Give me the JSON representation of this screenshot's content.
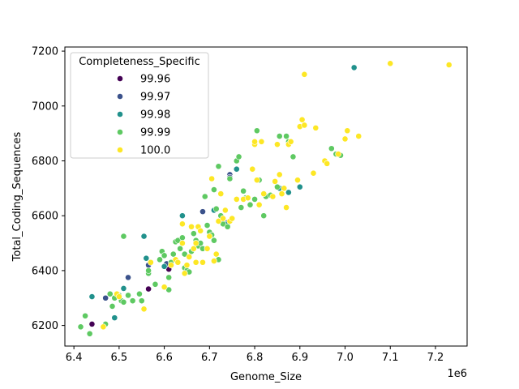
{
  "chart_data": {
    "type": "scatter",
    "title": "",
    "xlabel": "Genome_Size",
    "ylabel": "Total_Coding_Sequences",
    "x_offset_label": "1e6",
    "xlim": [
      6.38,
      7.27
    ],
    "ylim": [
      6125,
      7215
    ],
    "x_ticks": [
      "6.4",
      "6.5",
      "6.6",
      "6.7",
      "6.8",
      "6.9",
      "7.0",
      "7.1",
      "7.2"
    ],
    "y_ticks": [
      "6200",
      "6400",
      "6600",
      "6800",
      "7000",
      "7200"
    ],
    "x_tick_values": [
      6.4,
      6.5,
      6.6,
      6.7,
      6.8,
      6.9,
      7.0,
      7.1,
      7.2
    ],
    "y_tick_values": [
      6200,
      6400,
      6600,
      6800,
      7000,
      7200
    ],
    "grid": false,
    "legend": {
      "title": "Completeness_Specific",
      "placement": "top-left"
    },
    "series": [
      {
        "name": "99.96",
        "color": "#440154",
        "points": [
          [
            6.44,
            6205
          ],
          [
            6.565,
            6333
          ],
          [
            6.61,
            6405
          ]
        ]
      },
      {
        "name": "99.97",
        "color": "#3b528b",
        "points": [
          [
            6.47,
            6300
          ],
          [
            6.52,
            6375
          ],
          [
            6.565,
            6420
          ],
          [
            6.605,
            6425
          ],
          [
            6.685,
            6615
          ],
          [
            6.745,
            6750
          ],
          [
            6.745,
            6740
          ],
          [
            6.74,
            6575
          ]
        ]
      },
      {
        "name": "99.98",
        "color": "#21918c",
        "points": [
          [
            6.44,
            6305
          ],
          [
            6.49,
            6228
          ],
          [
            6.51,
            6335
          ],
          [
            6.555,
            6525
          ],
          [
            6.56,
            6445
          ],
          [
            6.6,
            6415
          ],
          [
            6.64,
            6600
          ],
          [
            6.66,
            6560
          ],
          [
            6.71,
            6620
          ],
          [
            6.74,
            6570
          ],
          [
            6.76,
            6770
          ],
          [
            6.855,
            6700
          ],
          [
            6.875,
            6685
          ],
          [
            6.9,
            6705
          ],
          [
            7.02,
            7140
          ]
        ]
      },
      {
        "name": "99.99",
        "color": "#5ec962",
        "points": [
          [
            6.415,
            6195
          ],
          [
            6.425,
            6235
          ],
          [
            6.435,
            6170
          ],
          [
            6.47,
            6205
          ],
          [
            6.48,
            6315
          ],
          [
            6.485,
            6270
          ],
          [
            6.49,
            6300
          ],
          [
            6.5,
            6310
          ],
          [
            6.505,
            6290
          ],
          [
            6.51,
            6285
          ],
          [
            6.51,
            6525
          ],
          [
            6.52,
            6310
          ],
          [
            6.53,
            6290
          ],
          [
            6.545,
            6315
          ],
          [
            6.55,
            6290
          ],
          [
            6.565,
            6390
          ],
          [
            6.565,
            6400
          ],
          [
            6.58,
            6350
          ],
          [
            6.59,
            6440
          ],
          [
            6.595,
            6470
          ],
          [
            6.6,
            6455
          ],
          [
            6.61,
            6330
          ],
          [
            6.61,
            6375
          ],
          [
            6.615,
            6430
          ],
          [
            6.62,
            6460
          ],
          [
            6.625,
            6505
          ],
          [
            6.63,
            6510
          ],
          [
            6.635,
            6480
          ],
          [
            6.64,
            6520
          ],
          [
            6.645,
            6460
          ],
          [
            6.645,
            6410
          ],
          [
            6.65,
            6400
          ],
          [
            6.655,
            6395
          ],
          [
            6.66,
            6470
          ],
          [
            6.665,
            6535
          ],
          [
            6.67,
            6510
          ],
          [
            6.675,
            6490
          ],
          [
            6.68,
            6500
          ],
          [
            6.685,
            6480
          ],
          [
            6.69,
            6670
          ],
          [
            6.695,
            6565
          ],
          [
            6.7,
            6540
          ],
          [
            6.705,
            6530
          ],
          [
            6.71,
            6510
          ],
          [
            6.71,
            6695
          ],
          [
            6.715,
            6625
          ],
          [
            6.72,
            6440
          ],
          [
            6.72,
            6780
          ],
          [
            6.725,
            6600
          ],
          [
            6.73,
            6570
          ],
          [
            6.74,
            6560
          ],
          [
            6.745,
            6735
          ],
          [
            6.76,
            6800
          ],
          [
            6.765,
            6815
          ],
          [
            6.77,
            6630
          ],
          [
            6.775,
            6690
          ],
          [
            6.78,
            6665
          ],
          [
            6.79,
            6640
          ],
          [
            6.8,
            6660
          ],
          [
            6.805,
            6910
          ],
          [
            6.81,
            6730
          ],
          [
            6.82,
            6600
          ],
          [
            6.825,
            6670
          ],
          [
            6.835,
            6675
          ],
          [
            6.85,
            6705
          ],
          [
            6.855,
            6890
          ],
          [
            6.87,
            6890
          ],
          [
            6.875,
            6870
          ],
          [
            6.885,
            6815
          ],
          [
            6.97,
            6845
          ],
          [
            6.98,
            6825
          ],
          [
            6.99,
            6820
          ]
        ]
      },
      {
        "name": "100.0",
        "color": "#fde725",
        "points": [
          [
            6.465,
            6195
          ],
          [
            6.495,
            6315
          ],
          [
            6.5,
            6305
          ],
          [
            6.555,
            6260
          ],
          [
            6.57,
            6430
          ],
          [
            6.6,
            6340
          ],
          [
            6.615,
            6420
          ],
          [
            6.625,
            6440
          ],
          [
            6.63,
            6430
          ],
          [
            6.64,
            6570
          ],
          [
            6.64,
            6500
          ],
          [
            6.645,
            6390
          ],
          [
            6.65,
            6420
          ],
          [
            6.655,
            6450
          ],
          [
            6.66,
            6560
          ],
          [
            6.665,
            6480
          ],
          [
            6.67,
            6500
          ],
          [
            6.67,
            6430
          ],
          [
            6.675,
            6560
          ],
          [
            6.68,
            6545
          ],
          [
            6.685,
            6430
          ],
          [
            6.695,
            6480
          ],
          [
            6.7,
            6525
          ],
          [
            6.705,
            6735
          ],
          [
            6.71,
            6435
          ],
          [
            6.715,
            6460
          ],
          [
            6.72,
            6580
          ],
          [
            6.725,
            6680
          ],
          [
            6.73,
            6590
          ],
          [
            6.735,
            6620
          ],
          [
            6.745,
            6580
          ],
          [
            6.75,
            6590
          ],
          [
            6.76,
            6660
          ],
          [
            6.775,
            6660
          ],
          [
            6.785,
            6665
          ],
          [
            6.795,
            6770
          ],
          [
            6.8,
            6860
          ],
          [
            6.8,
            6870
          ],
          [
            6.805,
            6730
          ],
          [
            6.81,
            6640
          ],
          [
            6.815,
            6870
          ],
          [
            6.82,
            6680
          ],
          [
            6.84,
            6670
          ],
          [
            6.845,
            6725
          ],
          [
            6.85,
            6860
          ],
          [
            6.855,
            6750
          ],
          [
            6.86,
            6680
          ],
          [
            6.865,
            6700
          ],
          [
            6.87,
            6630
          ],
          [
            6.875,
            6860
          ],
          [
            6.88,
            6870
          ],
          [
            6.895,
            6730
          ],
          [
            6.9,
            6925
          ],
          [
            6.905,
            6950
          ],
          [
            6.91,
            6930
          ],
          [
            6.91,
            7115
          ],
          [
            6.93,
            6755
          ],
          [
            6.935,
            6920
          ],
          [
            6.955,
            6800
          ],
          [
            6.96,
            6790
          ],
          [
            6.985,
            6825
          ],
          [
            7.0,
            6880
          ],
          [
            7.005,
            6910
          ],
          [
            7.03,
            6890
          ],
          [
            7.1,
            7155
          ],
          [
            7.23,
            7150
          ]
        ]
      }
    ]
  }
}
